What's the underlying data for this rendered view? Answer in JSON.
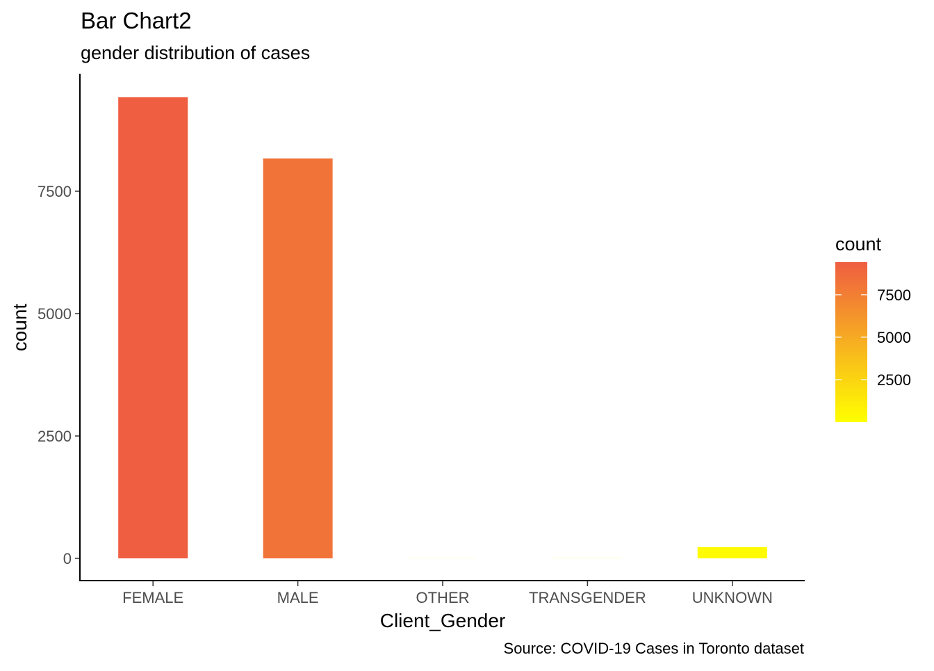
{
  "chart_data": {
    "type": "bar",
    "title": "Bar Chart2",
    "subtitle": "gender distribution of cases",
    "caption": "Source: COVID-19 Cases in Toronto dataset",
    "xlabel": "Client_Gender",
    "ylabel": "count",
    "categories": [
      "FEMALE",
      "MALE",
      "OTHER",
      "TRANSGENDER",
      "UNKNOWN"
    ],
    "values": [
      9420,
      8170,
      2,
      3,
      230
    ],
    "ylim": [
      0,
      9600
    ],
    "yticks": [
      0,
      2500,
      5000,
      7500
    ],
    "ytick_labels": [
      "0",
      "2500",
      "5000",
      "7500"
    ],
    "grid": false,
    "legend": {
      "title": "count",
      "placement": "right",
      "type": "colorbar",
      "range": [
        2,
        9420
      ],
      "ticks": [
        2500,
        5000,
        7500
      ],
      "tick_labels": [
        "2500",
        "5000",
        "7500"
      ],
      "color_low": "#FFFF00",
      "color_high": "#EF5E41"
    }
  }
}
